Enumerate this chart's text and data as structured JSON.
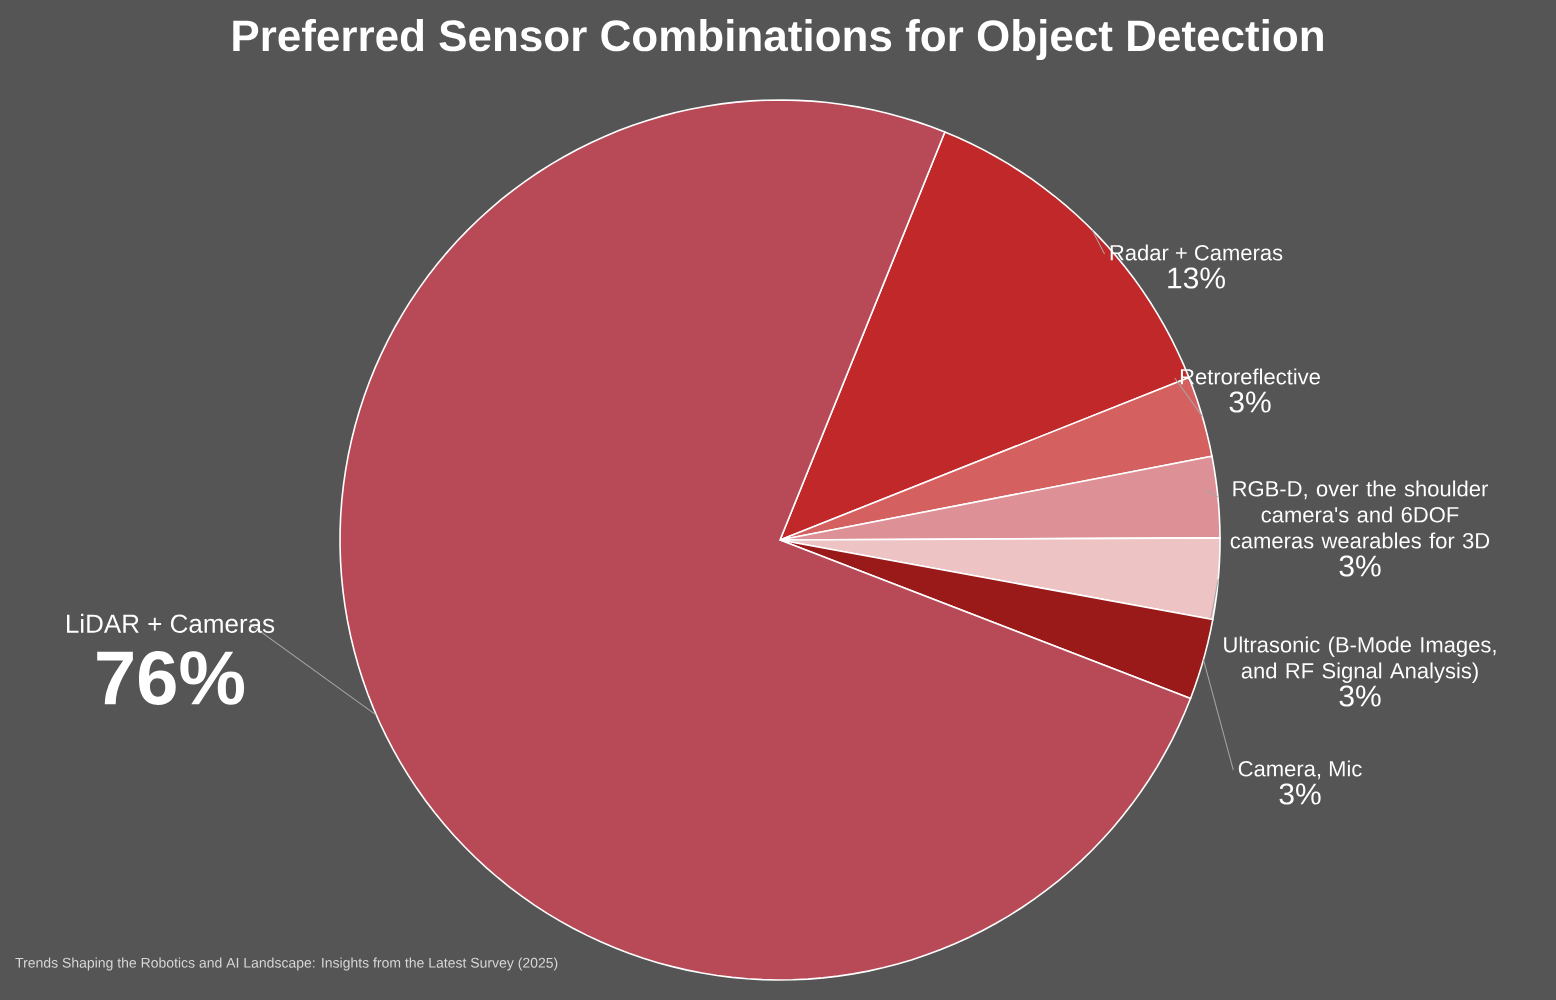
{
  "chart_data": {
    "type": "pie",
    "title": "Preferred Sensor Combinations for Object Detection",
    "categories": [
      "Radar + Cameras",
      "Retroreflective",
      "RGB-D, over the shoulder camera's and 6DOF cameras wearables for 3D",
      "Ultrasonic (B-Mode Images, and RF Signal Analysis)",
      "Camera, Mic",
      "LiDAR + Cameras"
    ],
    "values": [
      13,
      3,
      3,
      3,
      3,
      76
    ],
    "value_labels": [
      "13%",
      "3%",
      "3%",
      "3%",
      "3%",
      "76%"
    ],
    "colors": [
      "#c0282a",
      "#d46060",
      "#dd9095",
      "#eec3c3",
      "#9a1a1a",
      "#b84a58"
    ],
    "annotations": [
      "Trends Shaping the Robotics and AI Landscape: Insights from the Latest Survey (2025)"
    ]
  }
}
